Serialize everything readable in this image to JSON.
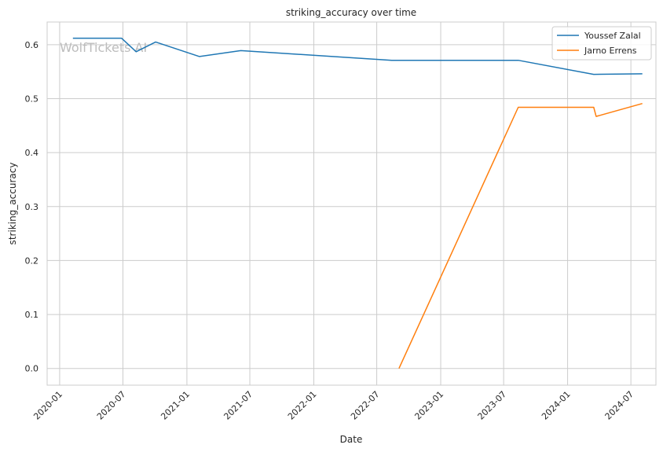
{
  "watermark": "WolfTickets AI",
  "chart_data": {
    "type": "line",
    "title": "striking_accuracy over time",
    "xlabel": "Date",
    "ylabel": "striking_accuracy",
    "x_ticks": [
      "2020-01",
      "2020-07",
      "2021-01",
      "2021-07",
      "2022-01",
      "2022-07",
      "2023-01",
      "2023-07",
      "2024-01",
      "2024-07"
    ],
    "y_ticks": [
      "0.0",
      "0.1",
      "0.2",
      "0.3",
      "0.4",
      "0.5",
      "0.6"
    ],
    "xlim": [
      "2019-11-26",
      "2024-09-11"
    ],
    "ylim": [
      -0.031,
      0.642
    ],
    "grid": true,
    "legend_position": "top-right",
    "series": [
      {
        "name": "Youssef Zalal",
        "color": "#1f77b4",
        "x": [
          "2020-02-08",
          "2020-06-27",
          "2020-08-08",
          "2020-10-03",
          "2021-02-06",
          "2021-06-05",
          "2022-08-13",
          "2023-08-12",
          "2024-03-16",
          "2024-08-03"
        ],
        "y": [
          0.612,
          0.612,
          0.587,
          0.605,
          0.578,
          0.589,
          0.571,
          0.571,
          0.545,
          0.546
        ]
      },
      {
        "name": "Jarno Errens",
        "color": "#ff7f0e",
        "x": [
          "2022-09-03",
          "2023-08-12",
          "2024-03-16",
          "2024-03-23",
          "2024-08-03"
        ],
        "y": [
          0.0,
          0.484,
          0.484,
          0.467,
          0.491
        ]
      }
    ]
  }
}
